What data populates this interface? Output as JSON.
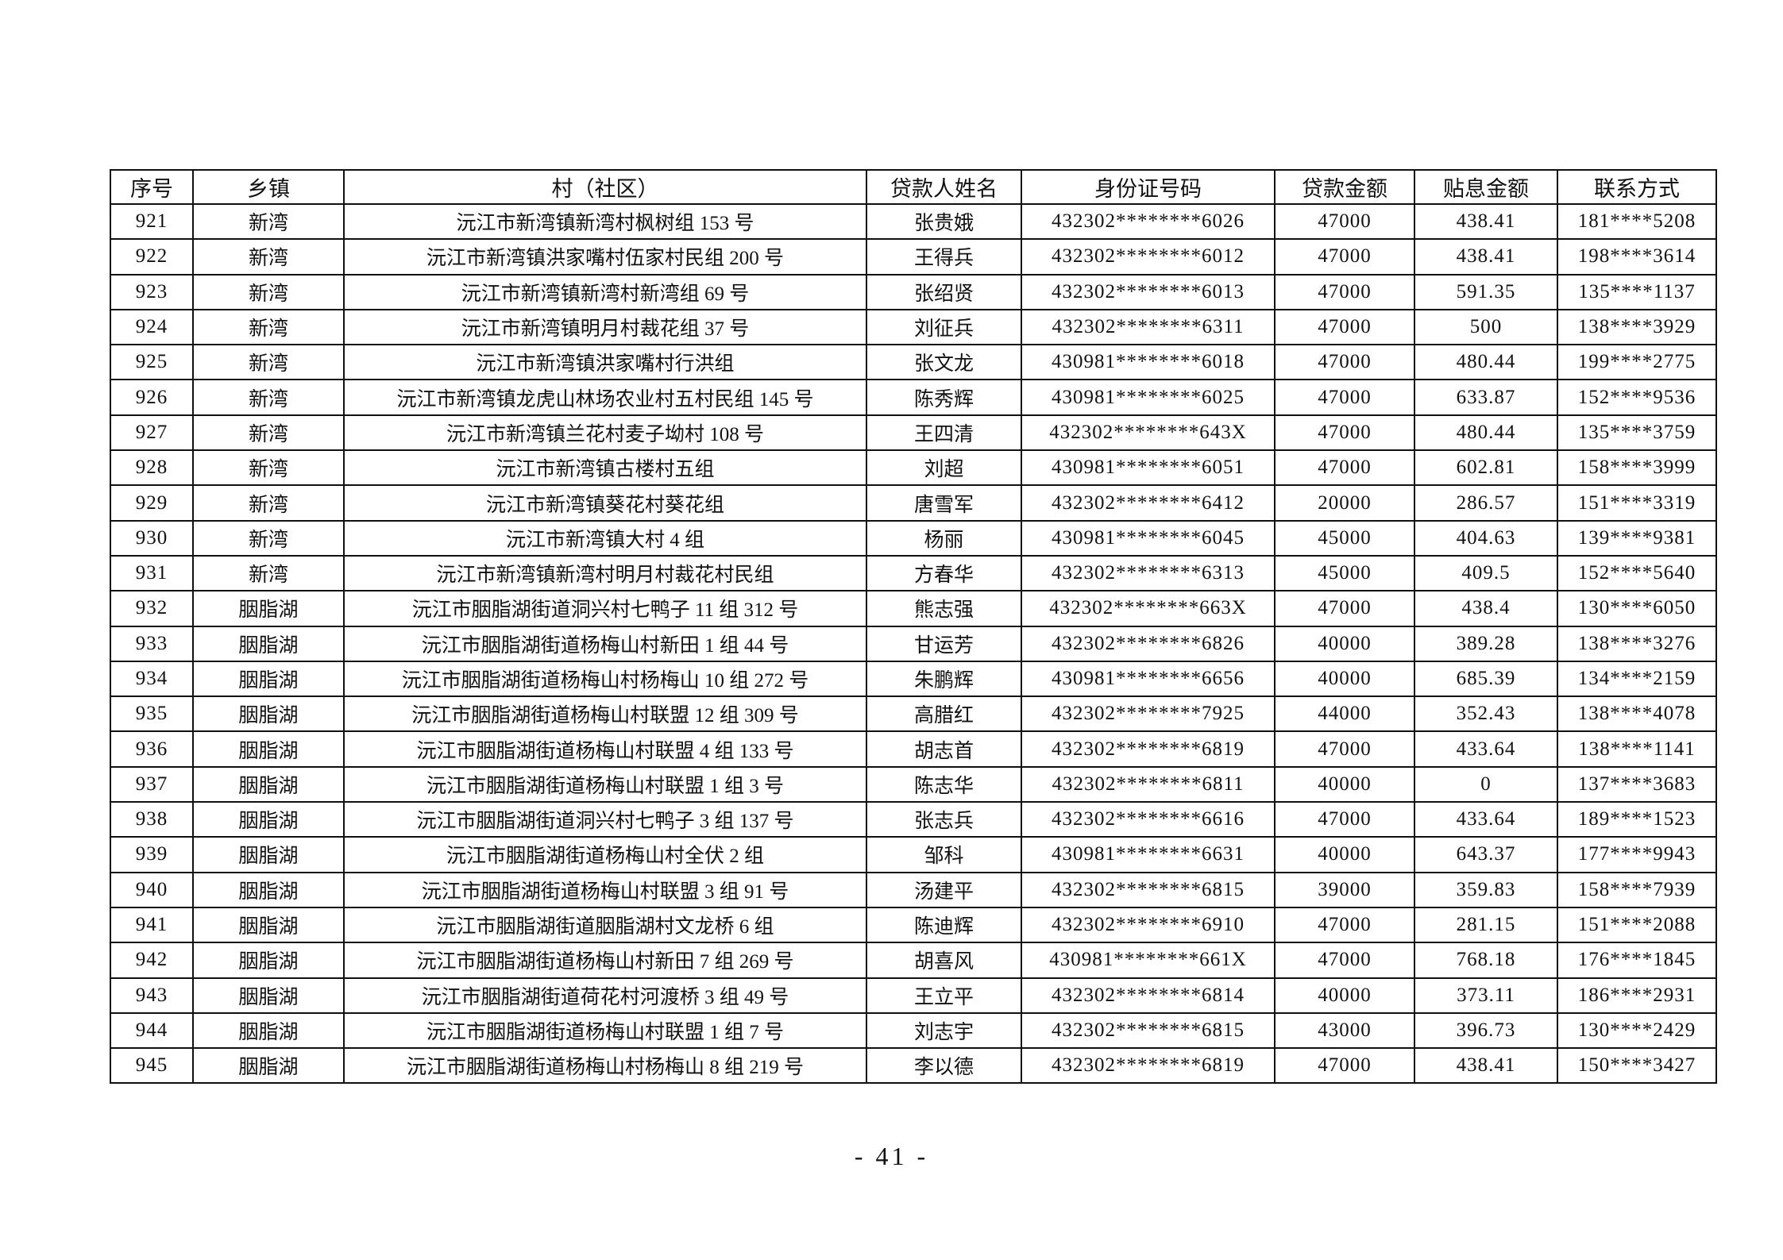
{
  "table": {
    "headers": [
      "序号",
      "乡镇",
      "村（社区）",
      "贷款人姓名",
      "身份证号码",
      "贷款金额",
      "贴息金额",
      "联系方式"
    ],
    "rows": [
      [
        "921",
        "新湾",
        "沅江市新湾镇新湾村枫树组 153 号",
        "张贵娥",
        "432302********6026",
        "47000",
        "438.41",
        "181****5208"
      ],
      [
        "922",
        "新湾",
        "沅江市新湾镇洪家嘴村伍家村民组 200 号",
        "王得兵",
        "432302********6012",
        "47000",
        "438.41",
        "198****3614"
      ],
      [
        "923",
        "新湾",
        "沅江市新湾镇新湾村新湾组 69 号",
        "张绍贤",
        "432302********6013",
        "47000",
        "591.35",
        "135****1137"
      ],
      [
        "924",
        "新湾",
        "沅江市新湾镇明月村裁花组 37 号",
        "刘征兵",
        "432302********6311",
        "47000",
        "500",
        "138****3929"
      ],
      [
        "925",
        "新湾",
        "沅江市新湾镇洪家嘴村行洪组",
        "张文龙",
        "430981********6018",
        "47000",
        "480.44",
        "199****2775"
      ],
      [
        "926",
        "新湾",
        "沅江市新湾镇龙虎山林场农业村五村民组 145 号",
        "陈秀辉",
        "430981********6025",
        "47000",
        "633.87",
        "152****9536"
      ],
      [
        "927",
        "新湾",
        "沅江市新湾镇兰花村麦子坳村 108 号",
        "王四清",
        "432302********643X",
        "47000",
        "480.44",
        "135****3759"
      ],
      [
        "928",
        "新湾",
        "沅江市新湾镇古楼村五组",
        "刘超",
        "430981********6051",
        "47000",
        "602.81",
        "158****3999"
      ],
      [
        "929",
        "新湾",
        "沅江市新湾镇葵花村葵花组",
        "唐雪军",
        "432302********6412",
        "20000",
        "286.57",
        "151****3319"
      ],
      [
        "930",
        "新湾",
        "沅江市新湾镇大村 4 组",
        "杨丽",
        "430981********6045",
        "45000",
        "404.63",
        "139****9381"
      ],
      [
        "931",
        "新湾",
        "沅江市新湾镇新湾村明月村裁花村民组",
        "方春华",
        "432302********6313",
        "45000",
        "409.5",
        "152****5640"
      ],
      [
        "932",
        "胭脂湖",
        "沅江市胭脂湖街道洞兴村七鸭子 11 组 312 号",
        "熊志强",
        "432302********663X",
        "47000",
        "438.4",
        "130****6050"
      ],
      [
        "933",
        "胭脂湖",
        "沅江市胭脂湖街道杨梅山村新田 1 组 44 号",
        "甘运芳",
        "432302********6826",
        "40000",
        "389.28",
        "138****3276"
      ],
      [
        "934",
        "胭脂湖",
        "沅江市胭脂湖街道杨梅山村杨梅山 10 组 272 号",
        "朱鹏辉",
        "430981********6656",
        "40000",
        "685.39",
        "134****2159"
      ],
      [
        "935",
        "胭脂湖",
        "沅江市胭脂湖街道杨梅山村联盟 12 组 309 号",
        "高腊红",
        "432302********7925",
        "44000",
        "352.43",
        "138****4078"
      ],
      [
        "936",
        "胭脂湖",
        "沅江市胭脂湖街道杨梅山村联盟 4 组 133 号",
        "胡志首",
        "432302********6819",
        "47000",
        "433.64",
        "138****1141"
      ],
      [
        "937",
        "胭脂湖",
        "沅江市胭脂湖街道杨梅山村联盟 1 组 3 号",
        "陈志华",
        "432302********6811",
        "40000",
        "0",
        "137****3683"
      ],
      [
        "938",
        "胭脂湖",
        "沅江市胭脂湖街道洞兴村七鸭子 3 组 137 号",
        "张志兵",
        "432302********6616",
        "47000",
        "433.64",
        "189****1523"
      ],
      [
        "939",
        "胭脂湖",
        "沅江市胭脂湖街道杨梅山村全伏 2 组",
        "邹科",
        "430981********6631",
        "40000",
        "643.37",
        "177****9943"
      ],
      [
        "940",
        "胭脂湖",
        "沅江市胭脂湖街道杨梅山村联盟 3 组 91 号",
        "汤建平",
        "432302********6815",
        "39000",
        "359.83",
        "158****7939"
      ],
      [
        "941",
        "胭脂湖",
        "沅江市胭脂湖街道胭脂湖村文龙桥 6 组",
        "陈迪辉",
        "432302********6910",
        "47000",
        "281.15",
        "151****2088"
      ],
      [
        "942",
        "胭脂湖",
        "沅江市胭脂湖街道杨梅山村新田 7 组 269 号",
        "胡喜风",
        "430981********661X",
        "47000",
        "768.18",
        "176****1845"
      ],
      [
        "943",
        "胭脂湖",
        "沅江市胭脂湖街道荷花村河渡桥 3 组 49 号",
        "王立平",
        "432302********6814",
        "40000",
        "373.11",
        "186****2931"
      ],
      [
        "944",
        "胭脂湖",
        "沅江市胭脂湖街道杨梅山村联盟 1 组 7 号",
        "刘志宇",
        "432302********6815",
        "43000",
        "396.73",
        "130****2429"
      ],
      [
        "945",
        "胭脂湖",
        "沅江市胭脂湖街道杨梅山村杨梅山 8 组 219 号",
        "李以德",
        "432302********6819",
        "47000",
        "438.41",
        "150****3427"
      ]
    ]
  },
  "footer": {
    "page_number": "- 41 -"
  }
}
